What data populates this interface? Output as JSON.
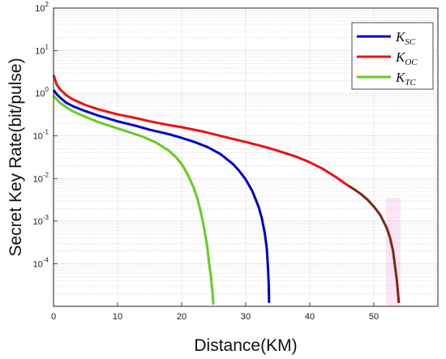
{
  "chart_data": {
    "type": "line",
    "title": "",
    "xlabel": "Distance(KM)",
    "ylabel": "Secret Key Rate(bit/pulse)",
    "xlim": [
      0,
      60
    ],
    "ylim": [
      1e-05,
      100
    ],
    "yscale": "log",
    "grid": true,
    "legend_position": "top-right",
    "x_ticks": [
      "0",
      "10",
      "20",
      "30",
      "40",
      "50"
    ],
    "y_ticks": [
      {
        "value": 100,
        "base": "10",
        "exp": "2"
      },
      {
        "value": 10,
        "base": "10",
        "exp": "1"
      },
      {
        "value": 1,
        "base": "10",
        "exp": "0"
      },
      {
        "value": 0.1,
        "base": "10",
        "exp": "-1"
      },
      {
        "value": 0.01,
        "base": "10",
        "exp": "-2"
      },
      {
        "value": 0.001,
        "base": "10",
        "exp": "-3"
      },
      {
        "value": 0.0001,
        "base": "10",
        "exp": "-4"
      }
    ],
    "series": [
      {
        "name": "K_SC",
        "label_main": "K",
        "label_sub": "SC",
        "color": "#0000cc",
        "x": [
          0,
          0.5,
          1,
          2,
          3,
          5,
          7,
          10,
          13,
          15,
          18,
          20,
          22,
          24,
          26,
          28,
          29,
          30,
          31,
          32,
          32.5,
          33,
          33.3,
          33.5,
          33.6,
          33.65
        ],
        "y": [
          1.2,
          0.95,
          0.8,
          0.6,
          0.5,
          0.38,
          0.3,
          0.22,
          0.17,
          0.14,
          0.11,
          0.09,
          0.072,
          0.055,
          0.038,
          0.022,
          0.015,
          0.0095,
          0.0052,
          0.0022,
          0.0012,
          0.0005,
          0.00022,
          7e-05,
          3e-05,
          1.2e-05
        ]
      },
      {
        "name": "K_OC",
        "label_main": "K",
        "label_sub": "OC",
        "color": "#ee1111",
        "x": [
          0,
          0.2,
          0.5,
          1,
          2,
          3,
          5,
          7,
          10,
          13,
          15,
          18,
          20,
          23,
          25,
          28,
          30,
          33,
          35,
          38,
          40,
          42,
          44,
          46
        ],
        "y": [
          2.7,
          2.2,
          1.6,
          1.25,
          0.9,
          0.72,
          0.53,
          0.42,
          0.32,
          0.26,
          0.22,
          0.18,
          0.16,
          0.13,
          0.11,
          0.085,
          0.072,
          0.055,
          0.045,
          0.032,
          0.024,
          0.017,
          0.011,
          0.0068
        ]
      },
      {
        "name": "K_OC_tail",
        "label_main": "",
        "label_sub": "",
        "color": "#7a2a10",
        "x": [
          46,
          47,
          48,
          49,
          50,
          51,
          52,
          52.5,
          53,
          53.3,
          53.6,
          53.8,
          53.9
        ],
        "y": [
          0.0068,
          0.0055,
          0.0043,
          0.0032,
          0.0022,
          0.0014,
          0.0007,
          0.00042,
          0.0002,
          9e-05,
          4e-05,
          1.8e-05,
          1.2e-05
        ]
      },
      {
        "name": "K_TC",
        "label_main": "K",
        "label_sub": "TC",
        "color": "#66cc22",
        "x": [
          0,
          0.5,
          1,
          2,
          3,
          5,
          7,
          10,
          12,
          14,
          16,
          18,
          19,
          20,
          21,
          22,
          22.5,
          23,
          23.5,
          24,
          24.3,
          24.6,
          24.8,
          24.9,
          24.95
        ],
        "y": [
          0.88,
          0.72,
          0.6,
          0.47,
          0.38,
          0.28,
          0.21,
          0.15,
          0.12,
          0.095,
          0.07,
          0.045,
          0.033,
          0.022,
          0.012,
          0.0055,
          0.0032,
          0.0016,
          0.0007,
          0.00025,
          0.0001,
          4.5e-05,
          2.2e-05,
          1.5e-05,
          1.1e-05
        ]
      }
    ],
    "legend": [
      {
        "main": "K",
        "sub": "SC",
        "color": "#0000cc"
      },
      {
        "main": "K",
        "sub": "OC",
        "color": "#ee1111"
      },
      {
        "main": "K",
        "sub": "TC",
        "color": "#66cc22"
      }
    ]
  }
}
